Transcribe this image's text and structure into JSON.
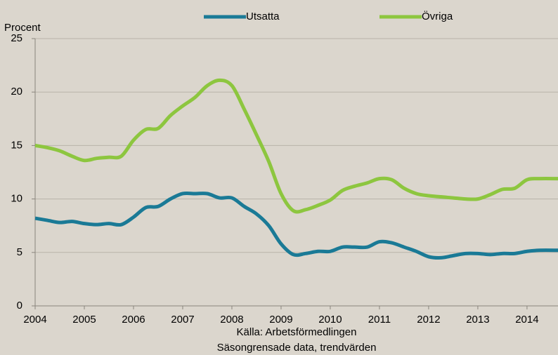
{
  "chart_data": {
    "type": "line",
    "y_label": "Procent",
    "source": "Källa: Arbetsförmedlingen",
    "note": "Säsongrensade data, trendvärden",
    "x": [
      2004,
      2004.25,
      2004.5,
      2004.75,
      2005,
      2005.25,
      2005.5,
      2005.75,
      2006,
      2006.25,
      2006.5,
      2006.75,
      2007,
      2007.25,
      2007.5,
      2007.75,
      2008,
      2008.25,
      2008.5,
      2008.75,
      2009,
      2009.25,
      2009.5,
      2009.75,
      2010,
      2010.25,
      2010.5,
      2010.75,
      2011,
      2011.25,
      2011.5,
      2011.75,
      2012,
      2012.25,
      2012.5,
      2012.75,
      2013,
      2013.25,
      2013.5,
      2013.75,
      2014,
      2014.25,
      2014.63
    ],
    "series": [
      {
        "name": "Utsatta",
        "color": "#1a7a96",
        "values": [
          8.2,
          8.0,
          7.8,
          7.9,
          7.7,
          7.6,
          7.7,
          7.6,
          8.3,
          9.2,
          9.3,
          10.0,
          10.5,
          10.5,
          10.5,
          10.1,
          10.1,
          9.3,
          8.6,
          7.5,
          5.8,
          4.8,
          4.9,
          5.1,
          5.1,
          5.5,
          5.5,
          5.5,
          6.0,
          5.9,
          5.5,
          5.1,
          4.6,
          4.5,
          4.7,
          4.9,
          4.9,
          4.8,
          4.9,
          4.9,
          5.1,
          5.2,
          5.2
        ]
      },
      {
        "name": "Övriga",
        "color": "#8dc63f",
        "values": [
          15.0,
          14.8,
          14.5,
          14.0,
          13.6,
          13.8,
          13.9,
          14.0,
          15.5,
          16.5,
          16.6,
          17.8,
          18.7,
          19.5,
          20.6,
          21.1,
          20.6,
          18.4,
          16.0,
          13.5,
          10.5,
          8.9,
          9.0,
          9.4,
          9.9,
          10.8,
          11.2,
          11.5,
          11.9,
          11.8,
          11.0,
          10.5,
          10.3,
          10.2,
          10.1,
          10.0,
          10.0,
          10.4,
          10.9,
          11.0,
          11.8,
          11.9,
          11.9
        ]
      }
    ],
    "xlim": [
      2004,
      2014.63
    ],
    "xticks": [
      2004,
      2005,
      2006,
      2007,
      2008,
      2009,
      2010,
      2011,
      2012,
      2013,
      2014
    ],
    "ylim": [
      0,
      25
    ],
    "yticks": [
      0,
      5,
      10,
      15,
      20,
      25
    ],
    "grid": true
  }
}
